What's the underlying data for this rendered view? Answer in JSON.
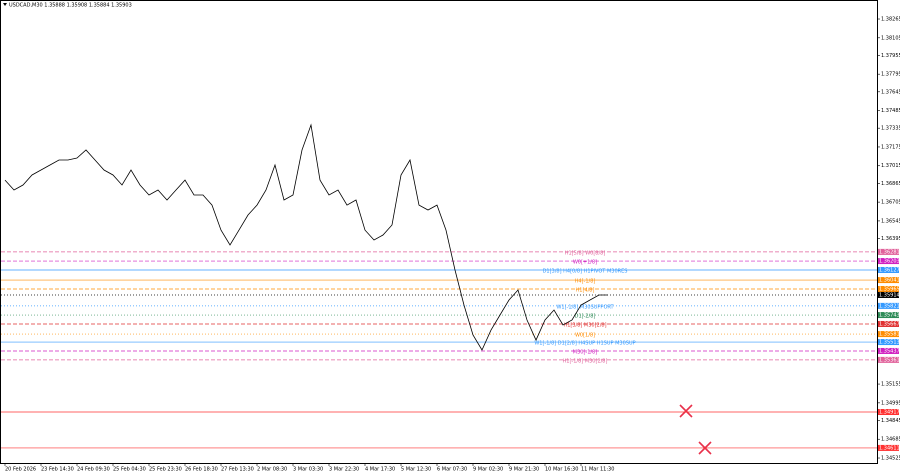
{
  "chart_data": {
    "type": "line",
    "title": "USDCAD,M30  1.35888 1.35908 1.35884 1.35903",
    "categories": [
      "20 Feb 2026",
      null,
      null,
      null,
      "23 Feb 14:30",
      null,
      null,
      null,
      "24 Feb 09:30",
      null,
      null,
      null,
      "25 Feb 04:30",
      null,
      null,
      null,
      "25 Feb 23:30",
      null,
      null,
      null,
      "26 Feb 18:30",
      null,
      null,
      null,
      "27 Feb 13:30",
      null,
      null,
      null,
      "2 Mar 08:30",
      null,
      null,
      null,
      "3 Mar 03:30",
      null,
      null,
      null,
      "3 Mar 22:30",
      null,
      null,
      null,
      "4 Mar 17:30",
      null,
      null,
      null,
      "5 Mar 12:30",
      null,
      null,
      null,
      "6 Mar 07:30",
      null,
      null,
      null,
      "9 Mar 02:30",
      null,
      null,
      null,
      "9 Mar 21:30",
      null,
      null,
      null,
      "10 Mar 16:30",
      null,
      null,
      null,
      "11 Mar 11:30",
      null,
      null,
      null
    ],
    "values": [
      1.36893,
      1.36808,
      1.36851,
      1.36936,
      1.36979,
      1.37021,
      1.37064,
      1.37064,
      1.37081,
      1.37149,
      1.37064,
      1.36979,
      1.36936,
      1.36851,
      1.36979,
      1.36851,
      1.36766,
      1.36808,
      1.36723,
      1.36808,
      1.36893,
      1.36766,
      1.36766,
      1.3668,
      1.36467,
      1.3634,
      1.36467,
      1.36595,
      1.3668,
      1.36808,
      1.37021,
      1.36723,
      1.36766,
      1.37149,
      1.37362,
      1.36893,
      1.36766,
      1.36808,
      1.3668,
      1.36723,
      1.36467,
      1.36382,
      1.36425,
      1.3651,
      1.36936,
      1.37064,
      1.3668,
      1.36638,
      1.3668,
      1.36467,
      1.36127,
      1.35828,
      1.35573,
      1.35445,
      1.35615,
      1.35743,
      1.35871,
      1.35956,
      1.35701,
      1.3553,
      1.35701,
      1.35786,
      1.35658,
      1.35701,
      1.35828,
      1.35871,
      1.35914,
      1.35914
    ],
    "color": "#000000",
    "ylim": [
      1.34457,
      1.38427
    ],
    "yticks": [
      1.38265,
      1.38105,
      1.37955,
      1.37795,
      1.37645,
      1.37485,
      1.37335,
      1.37175,
      1.37015,
      1.36865,
      1.36705,
      1.36545,
      1.36395,
      1.35155,
      1.34995,
      1.34845,
      1.34685,
      1.34525
    ],
    "levels": [
      {
        "price": 1.36281,
        "label": "H1[5/8] W0[8/8]",
        "color": "#e0609a",
        "style": "dash"
      },
      {
        "price": 1.36203,
        "label": "W0[+1/8]",
        "color": "#d020c0",
        "style": "dash"
      },
      {
        "price": 1.36127,
        "label": "D1[3/8] H4[0/8] H1PIVOT M30RES",
        "color": "#3399ff",
        "style": "solid"
      },
      {
        "price": 1.36041,
        "label": "H4[-1/8]",
        "color": "#ff8c00",
        "style": "solid"
      },
      {
        "price": 1.35965,
        "label": "H1[4/8]",
        "color": "#ff8c00",
        "style": "dash"
      },
      {
        "price": 1.35914,
        "color": "#000000",
        "style": "dot"
      },
      {
        "price": 1.35821,
        "label": "W1[-1/8] M30SUPPORT",
        "color": "#3399ff",
        "style": "dot"
      },
      {
        "price": 1.35743,
        "label": "D1[-2/8]",
        "color": "#2e8b57",
        "style": "dot"
      },
      {
        "price": 1.35667,
        "label": "H1[3/8] M30[2/8]",
        "color": "#e03030",
        "style": "dash"
      },
      {
        "price": 1.35581,
        "label": "W0[1/8]",
        "color": "#ff8c00",
        "style": "dot"
      },
      {
        "price": 1.35513,
        "label": "W1[-1/8] D1[2/8] H4SUP H1SUP M30SUP",
        "color": "#3399ff",
        "style": "solid"
      },
      {
        "price": 1.35437,
        "label": "M30[-1/8]",
        "color": "#d020c0",
        "style": "dash"
      },
      {
        "price": 1.35361,
        "label": "H1[-1/8] M30[2/8]",
        "color": "#e0609a",
        "style": "dash"
      },
      {
        "price": 1.34917,
        "color": "#ff3030",
        "style": "solid"
      },
      {
        "price": 1.34611,
        "color": "#ff3030",
        "style": "solid"
      }
    ]
  }
}
